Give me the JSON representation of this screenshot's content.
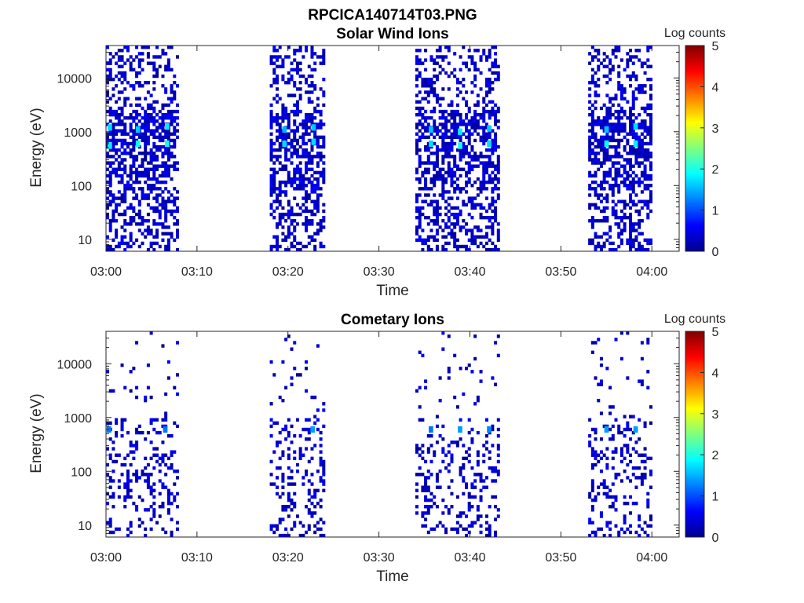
{
  "figure": {
    "filename_title": "RPCICA140714T03.PNG"
  },
  "chart_data": [
    {
      "type": "heatmap",
      "title": "Solar Wind Ions",
      "xlabel": "Time",
      "ylabel": "Energy (eV)",
      "x_tick_labels": [
        "03:00",
        "03:10",
        "03:20",
        "03:30",
        "03:40",
        "03:50",
        "04:00"
      ],
      "x_ticks_minutes": [
        0,
        10,
        20,
        30,
        40,
        50,
        60
      ],
      "xlim_minutes": [
        0,
        63
      ],
      "y_scale": "log",
      "y_tick_labels": [
        "10",
        "100",
        "1000",
        "10000"
      ],
      "y_ticks": [
        10,
        100,
        1000,
        10000
      ],
      "ylim": [
        6,
        40000
      ],
      "colorbar": {
        "label": "Log counts",
        "range": [
          0,
          5
        ],
        "ticks": [
          "0",
          "1",
          "2",
          "3",
          "4",
          "5"
        ],
        "colormap": "jet"
      },
      "grid": false,
      "measurement_intervals_minutes": [
        [
          0,
          8
        ],
        [
          18,
          24
        ],
        [
          34,
          43
        ],
        [
          53,
          60
        ]
      ],
      "hotspots": [
        {
          "time_min": 0.3,
          "energy_ev": 1200,
          "log_counts": 1.7
        },
        {
          "time_min": 0.3,
          "energy_ev": 550,
          "log_counts": 1.8
        },
        {
          "time_min": 3.4,
          "energy_ev": 1100,
          "log_counts": 1.6
        },
        {
          "time_min": 3.4,
          "energy_ev": 600,
          "log_counts": 1.9
        },
        {
          "time_min": 6.6,
          "energy_ev": 1250,
          "log_counts": 1.8
        },
        {
          "time_min": 6.6,
          "energy_ev": 600,
          "log_counts": 1.9
        },
        {
          "time_min": 19.5,
          "energy_ev": 1100,
          "log_counts": 1.5
        },
        {
          "time_min": 19.5,
          "energy_ev": 600,
          "log_counts": 1.7
        },
        {
          "time_min": 22.7,
          "energy_ev": 1200,
          "log_counts": 1.6
        },
        {
          "time_min": 22.7,
          "energy_ev": 650,
          "log_counts": 1.7
        },
        {
          "time_min": 35.6,
          "energy_ev": 1100,
          "log_counts": 1.6
        },
        {
          "time_min": 35.6,
          "energy_ev": 600,
          "log_counts": 1.7
        },
        {
          "time_min": 38.8,
          "energy_ev": 1000,
          "log_counts": 1.8
        },
        {
          "time_min": 38.8,
          "energy_ev": 550,
          "log_counts": 2.0
        },
        {
          "time_min": 42.0,
          "energy_ev": 1150,
          "log_counts": 1.6
        },
        {
          "time_min": 42.0,
          "energy_ev": 600,
          "log_counts": 1.7
        },
        {
          "time_min": 54.9,
          "energy_ev": 1100,
          "log_counts": 1.6
        },
        {
          "time_min": 54.9,
          "energy_ev": 600,
          "log_counts": 1.9
        },
        {
          "time_min": 58.1,
          "energy_ev": 1250,
          "log_counts": 1.7
        },
        {
          "time_min": 58.1,
          "energy_ev": 600,
          "log_counts": 1.8
        }
      ]
    },
    {
      "type": "heatmap",
      "title": "Cometary Ions",
      "xlabel": "Time",
      "ylabel": "Energy (eV)",
      "x_tick_labels": [
        "03:00",
        "03:10",
        "03:20",
        "03:30",
        "03:40",
        "03:50",
        "04:00"
      ],
      "x_ticks_minutes": [
        0,
        10,
        20,
        30,
        40,
        50,
        60
      ],
      "xlim_minutes": [
        0,
        63
      ],
      "y_scale": "log",
      "y_tick_labels": [
        "10",
        "100",
        "1000",
        "10000"
      ],
      "y_ticks": [
        10,
        100,
        1000,
        10000
      ],
      "ylim": [
        6,
        40000
      ],
      "colorbar": {
        "label": "Log counts",
        "range": [
          0,
          5
        ],
        "ticks": [
          "0",
          "1",
          "2",
          "3",
          "4",
          "5"
        ],
        "colormap": "jet"
      },
      "grid": false,
      "measurement_intervals_minutes": [
        [
          0,
          8
        ],
        [
          18,
          24
        ],
        [
          34,
          43
        ],
        [
          53,
          60
        ]
      ],
      "hotspots": [
        {
          "time_min": 0.2,
          "energy_ev": 600,
          "log_counts": 1.2
        },
        {
          "time_min": 6.4,
          "energy_ev": 600,
          "log_counts": 1.2
        },
        {
          "time_min": 22.6,
          "energy_ev": 600,
          "log_counts": 1.4
        },
        {
          "time_min": 35.6,
          "energy_ev": 600,
          "log_counts": 1.2
        },
        {
          "time_min": 38.8,
          "energy_ev": 600,
          "log_counts": 1.4
        },
        {
          "time_min": 42.0,
          "energy_ev": 600,
          "log_counts": 1.3
        },
        {
          "time_min": 54.9,
          "energy_ev": 600,
          "log_counts": 1.4
        },
        {
          "time_min": 58.1,
          "energy_ev": 600,
          "log_counts": 1.4
        }
      ]
    }
  ]
}
